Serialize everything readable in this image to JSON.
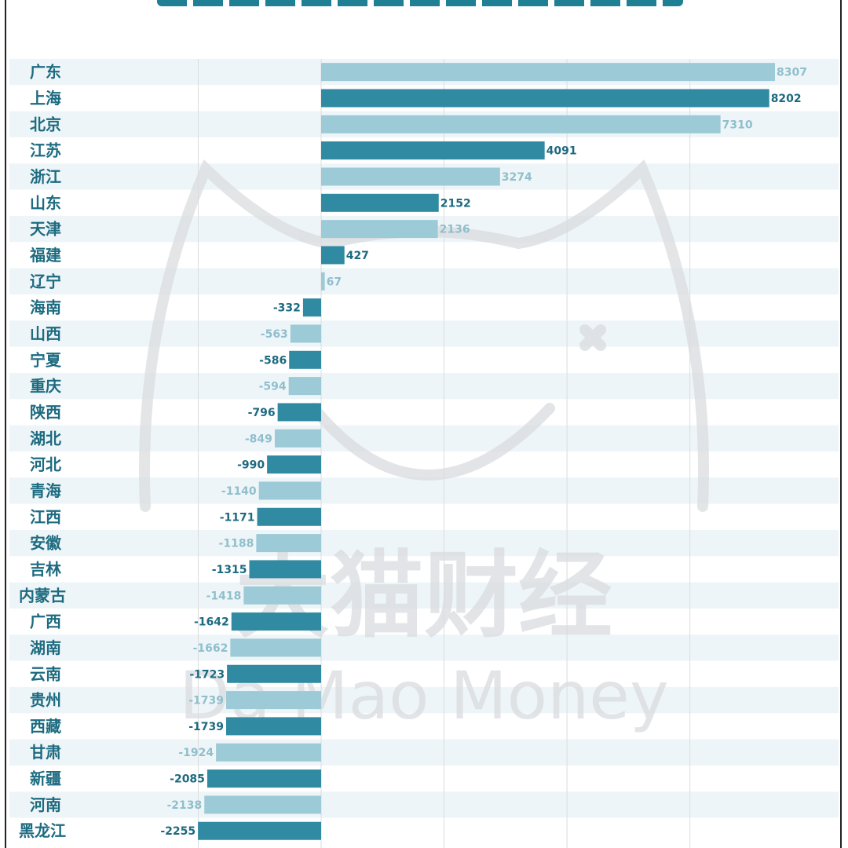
{
  "colors": {
    "dark_bar": "#2f8aa2",
    "light_bar": "#9ccad6",
    "dark_label": "#1c6a80",
    "light_label": "#8fbfcc",
    "stripe": "#eef5f8",
    "grid": "#dcdcdc",
    "watermark": "#d9dcdf"
  },
  "watermark": {
    "cn": "大猫财经",
    "en": "Da Mao Money"
  },
  "chart_data": {
    "type": "bar",
    "orientation": "horizontal",
    "categories": [
      "广东",
      "上海",
      "北京",
      "江苏",
      "浙江",
      "山东",
      "天津",
      "福建",
      "辽宁",
      "海南",
      "山西",
      "宁夏",
      "重庆",
      "陕西",
      "湖北",
      "河北",
      "青海",
      "江西",
      "安徽",
      "吉林",
      "内蒙古",
      "广西",
      "湖南",
      "云南",
      "贵州",
      "西藏",
      "甘肃",
      "新疆",
      "河南",
      "黑龙江"
    ],
    "values": [
      8307,
      8202,
      7310,
      4091,
      3274,
      2152,
      2136,
      427,
      67,
      -332,
      -563,
      -586,
      -594,
      -796,
      -849,
      -990,
      -1140,
      -1171,
      -1188,
      -1315,
      -1418,
      -1642,
      -1662,
      -1723,
      -1739,
      -1739,
      -1924,
      -2085,
      -2138,
      -2255
    ],
    "xlim": [
      -2500,
      8500
    ],
    "grid": true,
    "bar_colors": "alternating light/dark"
  }
}
